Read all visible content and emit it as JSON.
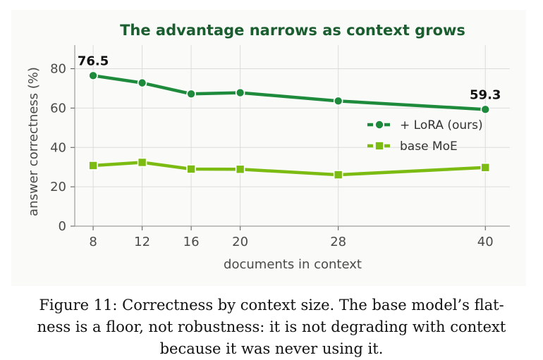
{
  "chart_data": {
    "type": "line",
    "title": "The advantage narrows as context grows",
    "xlabel": "documents in context",
    "ylabel": "answer correctness (%)",
    "x": [
      8,
      12,
      16,
      20,
      28,
      40
    ],
    "xticks": [
      "8",
      "12",
      "16",
      "20",
      "28",
      "40"
    ],
    "yticks": [
      "0",
      "20",
      "40",
      "60",
      "80"
    ],
    "xlim": [
      6.5,
      42
    ],
    "ylim": [
      0,
      92
    ],
    "grid": true,
    "legend_position": "center-right",
    "series": [
      {
        "name": "+ LoRA (ours)",
        "color": "#1e8a3c",
        "marker": "circle",
        "values": [
          76.5,
          72.8,
          67.2,
          67.8,
          63.6,
          59.3
        ]
      },
      {
        "name": "base MoE",
        "color": "#7cbb12",
        "marker": "square",
        "values": [
          30.8,
          32.4,
          29.0,
          28.9,
          26.1,
          29.8
        ]
      }
    ],
    "annotations": [
      {
        "text": "76.5",
        "x": 8,
        "y": 76.5
      },
      {
        "text": "59.3",
        "x": 40,
        "y": 59.3
      }
    ]
  },
  "caption": {
    "line1": "Figure 11: Correctness by context size. The base model’s flat-",
    "line2": "ness is a floor, not robustness: it is not degrading with context",
    "line3": "because it was never using it."
  }
}
